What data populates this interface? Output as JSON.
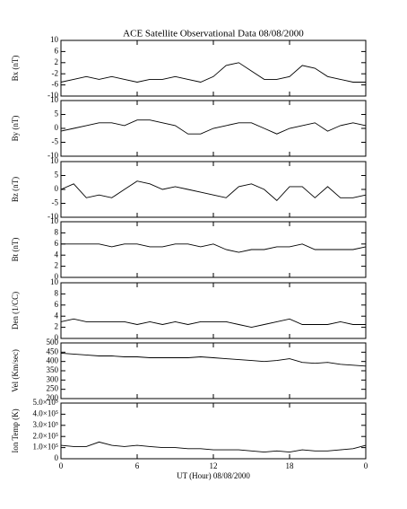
{
  "chart_data": [
    {
      "type": "line",
      "title": "ACE Satellite Observational Data   08/08/2000",
      "ylabel": "Bx (nT)",
      "x": [
        0,
        1,
        2,
        3,
        4,
        5,
        6,
        7,
        8,
        9,
        10,
        11,
        12,
        13,
        14,
        15,
        16,
        17,
        18,
        19,
        20,
        21,
        22,
        23,
        24
      ],
      "values": [
        -5,
        -4,
        -3,
        -4,
        -3,
        -4,
        -5,
        -4,
        -4,
        -3,
        -4,
        -5,
        -3,
        1,
        2,
        -1,
        -4,
        -4,
        -3,
        1,
        0,
        -3,
        -4,
        -5,
        -5
      ],
      "ylim": [
        -10,
        10
      ],
      "yticks": [
        -10,
        -6,
        -2,
        2,
        6,
        10
      ]
    },
    {
      "type": "line",
      "ylabel": "By (nT)",
      "x": [
        0,
        1,
        2,
        3,
        4,
        5,
        6,
        7,
        8,
        9,
        10,
        11,
        12,
        13,
        14,
        15,
        16,
        17,
        18,
        19,
        20,
        21,
        22,
        23,
        24
      ],
      "values": [
        -1,
        0,
        1,
        2,
        2,
        1,
        3,
        3,
        2,
        1,
        -2,
        -2,
        0,
        1,
        2,
        2,
        0,
        -2,
        0,
        1,
        2,
        -1,
        1,
        2,
        1
      ],
      "ylim": [
        -10,
        10
      ],
      "yticks": [
        -10,
        -5,
        0,
        5,
        10
      ]
    },
    {
      "type": "line",
      "ylabel": "Bz (nT)",
      "x": [
        0,
        1,
        2,
        3,
        4,
        5,
        6,
        7,
        8,
        9,
        10,
        11,
        12,
        13,
        14,
        15,
        16,
        17,
        18,
        19,
        20,
        21,
        22,
        23,
        24
      ],
      "values": [
        0,
        2,
        -3,
        -2,
        -3,
        0,
        3,
        2,
        0,
        1,
        0,
        -1,
        -2,
        -3,
        1,
        2,
        0,
        -4,
        1,
        1,
        -3,
        1,
        -3,
        -3,
        -2
      ],
      "ylim": [
        -10,
        10
      ],
      "yticks": [
        -10,
        -5,
        0,
        5,
        10
      ]
    },
    {
      "type": "line",
      "ylabel": "Bt (nT)",
      "x": [
        0,
        1,
        2,
        3,
        4,
        5,
        6,
        7,
        8,
        9,
        10,
        11,
        12,
        13,
        14,
        15,
        16,
        17,
        18,
        19,
        20,
        21,
        22,
        23,
        24
      ],
      "values": [
        6,
        6,
        6,
        6,
        5.5,
        6,
        6,
        5.5,
        5.5,
        6,
        6,
        5.5,
        6,
        5,
        4.5,
        5,
        5,
        5.5,
        5.5,
        6,
        5,
        5,
        5,
        5,
        5.5
      ],
      "ylim": [
        0,
        10
      ],
      "yticks": [
        0,
        2,
        4,
        6,
        8,
        10
      ]
    },
    {
      "type": "line",
      "ylabel": "Den (1/CC)",
      "x": [
        0,
        1,
        2,
        3,
        4,
        5,
        6,
        7,
        8,
        9,
        10,
        11,
        12,
        13,
        14,
        15,
        16,
        17,
        18,
        19,
        20,
        21,
        22,
        23,
        24
      ],
      "values": [
        3,
        3.5,
        3,
        3,
        3,
        3,
        2.5,
        3,
        2.5,
        3,
        2.5,
        3,
        3,
        3,
        2.5,
        2,
        2.5,
        3,
        3.5,
        2.5,
        2.5,
        2.5,
        3,
        2.5,
        2.5
      ],
      "ylim": [
        0,
        10
      ],
      "yticks": [
        0,
        2,
        4,
        6,
        8,
        10
      ]
    },
    {
      "type": "line",
      "ylabel": "Vel (Km/sec)",
      "x": [
        0,
        1,
        2,
        3,
        4,
        5,
        6,
        7,
        8,
        9,
        10,
        11,
        12,
        13,
        14,
        15,
        16,
        17,
        18,
        19,
        20,
        21,
        22,
        23,
        24
      ],
      "values": [
        445,
        440,
        435,
        430,
        430,
        425,
        425,
        420,
        420,
        420,
        420,
        425,
        420,
        415,
        410,
        405,
        400,
        405,
        415,
        395,
        390,
        395,
        385,
        380,
        375
      ],
      "ylim": [
        200,
        500
      ],
      "yticks": [
        200,
        250,
        300,
        350,
        400,
        450,
        500
      ]
    },
    {
      "type": "line",
      "ylabel": "Ion Temp (K)",
      "xlabel": "UT (Hour)   08/08/2000",
      "x": [
        0,
        1,
        2,
        3,
        4,
        5,
        6,
        7,
        8,
        9,
        10,
        11,
        12,
        13,
        14,
        15,
        16,
        17,
        18,
        19,
        20,
        21,
        22,
        23,
        24
      ],
      "values": [
        120000,
        110000,
        110000,
        150000,
        120000,
        110000,
        120000,
        110000,
        100000,
        100000,
        90000,
        90000,
        80000,
        80000,
        80000,
        70000,
        60000,
        70000,
        60000,
        80000,
        70000,
        70000,
        80000,
        90000,
        120000
      ],
      "ylim": [
        0,
        500000
      ],
      "yticks": [
        0,
        {
          "value": 100000,
          "label": "1.0×10⁵"
        },
        {
          "value": 200000,
          "label": "2.0×10⁵"
        },
        {
          "value": 300000,
          "label": "3.0×10⁵"
        },
        {
          "value": 400000,
          "label": "4.0×10⁵"
        },
        {
          "value": 500000,
          "label": "5.0×10⁵"
        }
      ],
      "xlim": [
        0,
        24
      ],
      "xticks": [
        0,
        6,
        12,
        18,
        {
          "value": 24,
          "label": "0"
        }
      ]
    }
  ]
}
